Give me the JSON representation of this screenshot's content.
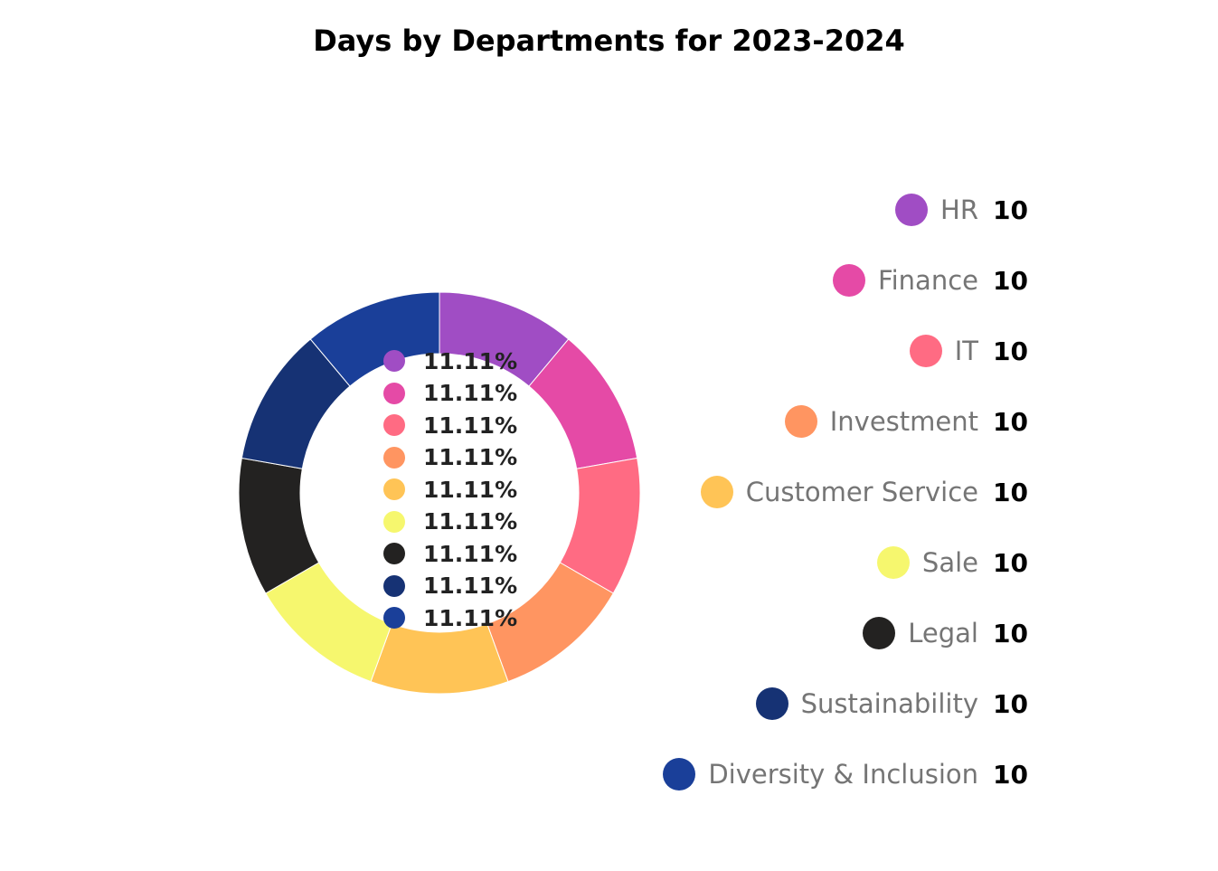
{
  "chart_data": {
    "type": "pie",
    "variant": "donut",
    "title": "Days by Departments for 2023-2024",
    "categories": [
      "HR",
      "Finance",
      "IT",
      "Investment",
      "Customer Service",
      "Sale",
      "Legal",
      "Sustainability",
      "Diversity & Inclusion"
    ],
    "values": [
      10,
      10,
      10,
      10,
      10,
      10,
      10,
      10,
      10
    ],
    "percent_labels": [
      "11.11%",
      "11.11%",
      "11.11%",
      "11.11%",
      "11.11%",
      "11.11%",
      "11.11%",
      "11.11%",
      "11.11%"
    ],
    "colors": [
      "#a04dc4",
      "#e54aa6",
      "#ff6b83",
      "#ff9561",
      "#ffc456",
      "#f6f76e",
      "#232221",
      "#163274",
      "#1a3f99"
    ],
    "legend_placement": "right"
  }
}
